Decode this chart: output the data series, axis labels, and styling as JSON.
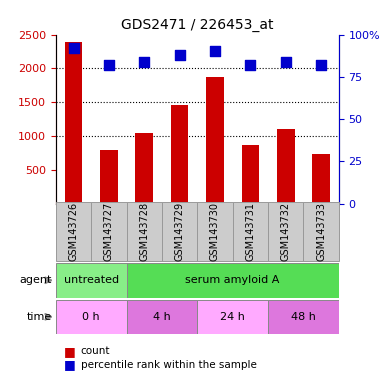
{
  "title": "GDS2471 / 226453_at",
  "samples": [
    "GSM143726",
    "GSM143727",
    "GSM143728",
    "GSM143729",
    "GSM143730",
    "GSM143731",
    "GSM143732",
    "GSM143733"
  ],
  "counts": [
    2390,
    790,
    1050,
    1460,
    1870,
    870,
    1110,
    740
  ],
  "percentiles": [
    92,
    82,
    84,
    88,
    90,
    82,
    84,
    82
  ],
  "bar_color": "#cc0000",
  "dot_color": "#0000cc",
  "ylim_left": [
    0,
    2500
  ],
  "ylim_right": [
    0,
    100
  ],
  "yticks_left": [
    500,
    1000,
    1500,
    2000,
    2500
  ],
  "yticks_right": [
    0,
    25,
    50,
    75,
    100
  ],
  "ytick_right_labels": [
    "0",
    "25",
    "50",
    "75",
    "100%"
  ],
  "agent_cells": [
    {
      "text": "untreated",
      "start": 0,
      "end": 2,
      "color": "#88ee88"
    },
    {
      "text": "serum amyloid A",
      "start": 2,
      "end": 8,
      "color": "#55dd55"
    }
  ],
  "time_cells": [
    {
      "text": "0 h",
      "start": 0,
      "end": 2,
      "color": "#ffaaff"
    },
    {
      "text": "4 h",
      "start": 2,
      "end": 4,
      "color": "#dd77dd"
    },
    {
      "text": "24 h",
      "start": 4,
      "end": 6,
      "color": "#ffaaff"
    },
    {
      "text": "48 h",
      "start": 6,
      "end": 8,
      "color": "#dd77dd"
    }
  ],
  "legend_count_color": "#cc0000",
  "legend_dot_color": "#0000cc",
  "tick_label_color_left": "#cc0000",
  "tick_label_color_right": "#0000cc",
  "bar_width": 0.5,
  "dot_size": 50,
  "sample_bg_color": "#cccccc",
  "sample_border_color": "#999999"
}
